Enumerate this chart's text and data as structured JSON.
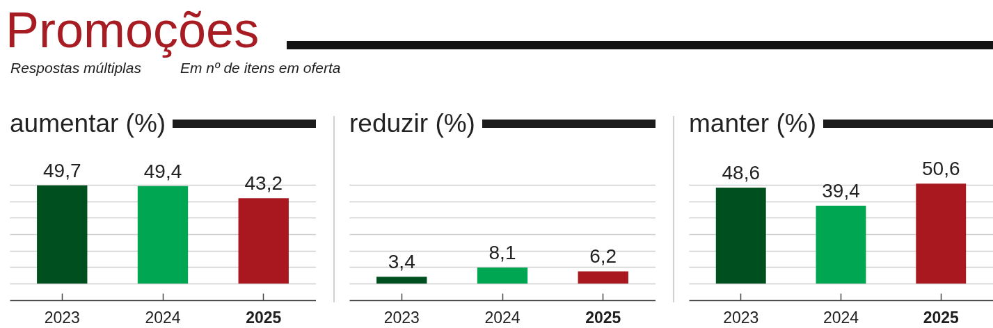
{
  "chart_data": [
    {
      "type": "other",
      "title": "Promoções",
      "subtitle": "Respostas múltiplas",
      "annotations": [
        "Em nº de itens em oferta"
      ]
    },
    {
      "type": "bar",
      "title": "aumentar (%)",
      "categories": [
        "2023",
        "2024",
        "2025"
      ],
      "values": [
        49.7,
        49.4,
        43.2
      ],
      "colors": [
        "#00501f",
        "#00a651",
        "#a8181e"
      ],
      "value_labels": [
        "49,7",
        "49,4",
        "43,2"
      ],
      "yticks": [
        {
          "value": 0,
          "label": null
        },
        {
          "value": 8.3,
          "label": null
        },
        {
          "value": 16.7,
          "label": null
        },
        {
          "value": 25,
          "label": null
        },
        {
          "value": 33.3,
          "label": null
        },
        {
          "value": 41.7,
          "label": null
        },
        {
          "value": 50,
          "label": null
        }
      ],
      "grid": "y",
      "tick_labels": "x"
    },
    {
      "type": "bar",
      "title": "reduzir (%)",
      "categories": [
        "2023",
        "2024",
        "2025"
      ],
      "values": [
        3.4,
        8.1,
        6.2
      ],
      "colors": [
        "#00501f",
        "#00a651",
        "#a8181e"
      ],
      "value_labels": [
        "3,4",
        "8,1",
        "6,2"
      ],
      "yticks": [
        {
          "value": 0,
          "label": null
        },
        {
          "value": 8.3,
          "label": null
        },
        {
          "value": 16.7,
          "label": null
        },
        {
          "value": 25,
          "label": null
        },
        {
          "value": 33.3,
          "label": null
        },
        {
          "value": 41.7,
          "label": null
        },
        {
          "value": 50,
          "label": null
        }
      ],
      "grid": "y",
      "tick_labels": "x"
    },
    {
      "type": "bar",
      "title": "manter (%)",
      "categories": [
        "2023",
        "2024",
        "2025"
      ],
      "values": [
        48.6,
        39.4,
        50.6
      ],
      "colors": [
        "#00501f",
        "#00a651",
        "#a8181e"
      ],
      "value_labels": [
        "48,6",
        "39,4",
        "50,6"
      ],
      "yticks": [
        {
          "value": 0,
          "label": null
        },
        {
          "value": 8.3,
          "label": null
        },
        {
          "value": 16.7,
          "label": null
        },
        {
          "value": 25,
          "label": null
        },
        {
          "value": 33.3,
          "label": null
        },
        {
          "value": 41.7,
          "label": null
        },
        {
          "value": 50,
          "label": null
        }
      ],
      "grid": "y",
      "tick_labels": "x"
    }
  ]
}
